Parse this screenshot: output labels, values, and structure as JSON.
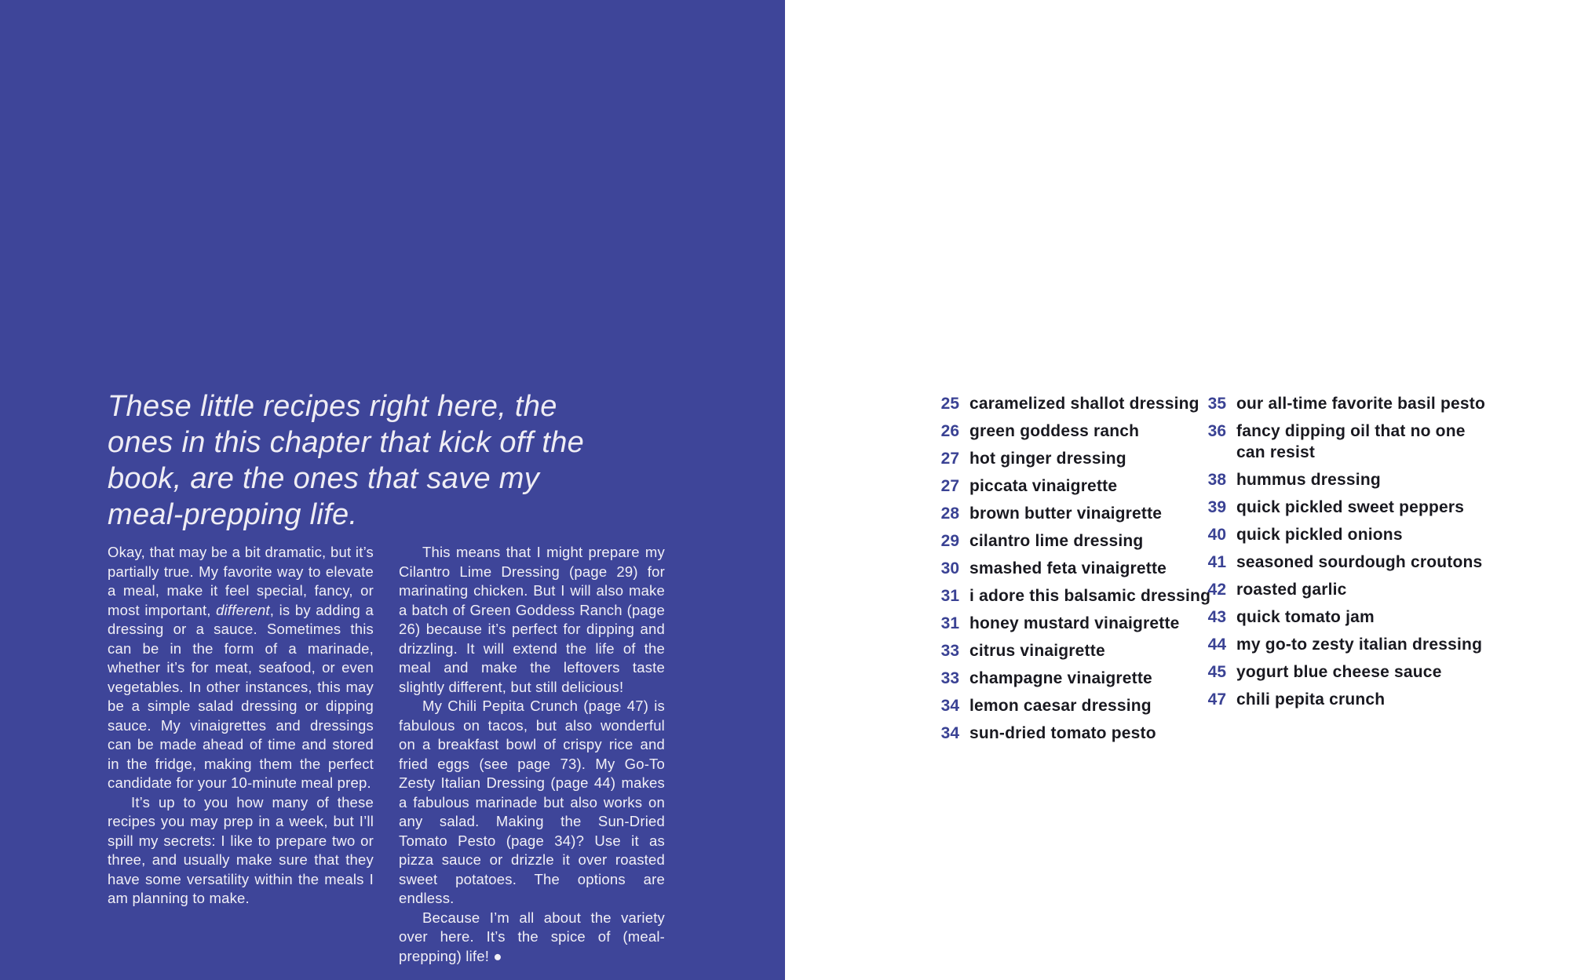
{
  "colors": {
    "page_blue": "#3E4599",
    "heading_text": "#EFEDF4",
    "body_text": "#F2F0F6",
    "toc_number": "#3A4294",
    "toc_title": "#191920"
  },
  "left_page": {
    "heading": "These little recipes right here, the ones in this chapter that kick off the book, are the ones that save my meal-prepping life.",
    "col1": {
      "p1_before": "Okay, that may be a bit dramatic, but it’s partially true. My favorite way to elevate a meal, make it feel special, fancy, or most important, ",
      "p1_italic": "different",
      "p1_after": ", is by adding a dressing or a sauce. Sometimes this can be in the form of a marinade, whether it’s for meat, seafood, or even vegetables. In other instances, this may be a simple salad dressing or dipping sauce. My vinaigrettes and dressings can be made ahead of time and stored in the fridge, making them the perfect candidate for your 10-minute meal prep.",
      "p2": "It’s up to you how many of these recipes you may prep in a week, but I’ll spill my secrets: I like to prepare two or three, and usually make sure that they have some versatility within the meals I am planning to make."
    },
    "col2": {
      "p1": "This means that I might prepare my Cilantro Lime Dressing (page 29) for marinating chicken. But I will also make a batch of Green Goddess Ranch (page 26) because it’s perfect for dipping and drizzling. It will extend the life of the meal and make the leftovers taste slightly different, but still delicious!",
      "p2": "My Chili Pepita Crunch (page 47) is fabulous on tacos, but also wonderful on a breakfast bowl of crispy rice and fried eggs (see page 73). My Go-To Zesty Italian Dressing (page 44) makes a fabulous marinade but also works on any salad. Making the Sun-Dried Tomato Pesto (page 34)? Use it as pizza sauce or drizzle it over roasted sweet potatoes. The options are endless.",
      "p3": "Because I’m all about the variety over here. It’s the spice of (meal-prepping) life! ●"
    }
  },
  "right_page": {
    "col1": [
      {
        "page": "25",
        "title": "caramelized shallot dressing"
      },
      {
        "page": "26",
        "title": "green goddess ranch"
      },
      {
        "page": "27",
        "title": "hot ginger dressing"
      },
      {
        "page": "27",
        "title": "piccata vinaigrette"
      },
      {
        "page": "28",
        "title": "brown butter vinaigrette"
      },
      {
        "page": "29",
        "title": "cilantro lime dressing"
      },
      {
        "page": "30",
        "title": "smashed feta vinaigrette"
      },
      {
        "page": "31",
        "title": "i adore this balsamic dressing"
      },
      {
        "page": "31",
        "title": "honey mustard vinaigrette"
      },
      {
        "page": "33",
        "title": "citrus vinaigrette"
      },
      {
        "page": "33",
        "title": "champagne vinaigrette"
      },
      {
        "page": "34",
        "title": "lemon caesar dressing"
      },
      {
        "page": "34",
        "title": "sun-dried tomato pesto"
      }
    ],
    "col2": [
      {
        "page": "35",
        "title": "our all-time favorite basil pesto"
      },
      {
        "page": "36",
        "title": "fancy dipping oil that no one\ncan resist"
      },
      {
        "page": "38",
        "title": "hummus dressing"
      },
      {
        "page": "39",
        "title": "quick pickled sweet peppers"
      },
      {
        "page": "40",
        "title": "quick pickled onions"
      },
      {
        "page": "41",
        "title": "seasoned sourdough croutons"
      },
      {
        "page": "42",
        "title": "roasted garlic"
      },
      {
        "page": "43",
        "title": "quick tomato jam"
      },
      {
        "page": "44",
        "title": "my go-to zesty italian dressing"
      },
      {
        "page": "45",
        "title": "yogurt blue cheese sauce"
      },
      {
        "page": "47",
        "title": "chili pepita crunch"
      }
    ]
  }
}
